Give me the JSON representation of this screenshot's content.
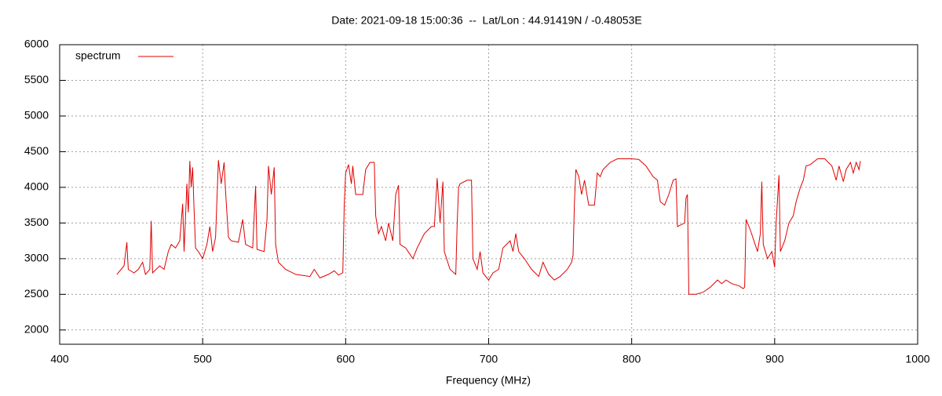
{
  "chart_data": {
    "type": "line",
    "title": "Date: 2021-09-18 15:00:36  --  Lat/Lon : 44.91419N / -0.48053E",
    "xlabel": "Frequency (MHz)",
    "xlim": [
      400,
      1000
    ],
    "xticks": [
      400,
      500,
      600,
      700,
      800,
      900,
      1000
    ],
    "ylim": [
      1800,
      6000
    ],
    "yticks": [
      2000,
      2500,
      3000,
      3500,
      4000,
      4500,
      5000,
      5500,
      6000
    ],
    "grid": true,
    "legend": "top-left",
    "x": [
      440,
      443,
      445,
      447,
      448,
      452,
      455,
      458,
      460,
      463,
      464,
      465,
      470,
      473,
      476,
      478,
      481,
      484,
      486,
      487,
      489,
      490,
      491,
      492,
      493,
      494,
      495,
      497,
      500,
      503,
      505,
      507,
      509,
      511,
      513,
      515,
      516,
      518,
      520,
      525,
      528,
      530,
      535,
      537,
      538,
      543,
      545,
      546,
      548,
      550,
      551,
      553,
      558,
      565,
      575,
      578,
      582,
      588,
      592,
      595,
      598,
      599,
      600,
      602,
      604,
      605,
      607,
      612,
      614,
      617,
      620,
      621,
      623,
      625,
      628,
      630,
      633,
      635,
      637,
      638,
      642,
      647,
      650,
      655,
      660,
      662,
      664,
      666,
      668,
      669,
      673,
      677,
      678,
      679,
      680,
      685,
      688,
      689,
      692,
      694,
      696,
      700,
      703,
      707,
      710,
      715,
      717,
      719,
      721,
      725,
      730,
      735,
      738,
      742,
      746,
      750,
      755,
      758,
      759,
      760,
      761,
      763,
      765,
      767,
      770,
      774,
      776,
      778,
      780,
      785,
      790,
      800,
      805,
      810,
      815,
      818,
      820,
      823,
      826,
      829,
      831,
      832,
      835,
      837,
      838,
      839,
      840,
      845,
      850,
      855,
      860,
      863,
      866,
      870,
      875,
      878,
      879,
      880,
      883,
      888,
      890,
      891,
      892,
      895,
      898,
      900,
      901,
      903,
      904,
      907,
      910,
      913,
      915,
      918,
      920,
      922,
      925,
      930,
      935,
      940,
      943,
      945,
      948,
      950,
      953,
      955,
      957,
      959,
      960
    ],
    "series": [
      {
        "name": "spectrum",
        "color": "#e00000",
        "values": [
          2780,
          2850,
          2900,
          3230,
          2850,
          2800,
          2850,
          2950,
          2780,
          2850,
          3530,
          2800,
          2900,
          2850,
          3100,
          3200,
          3150,
          3250,
          3770,
          3100,
          4050,
          3650,
          4370,
          4000,
          4280,
          3700,
          3150,
          3100,
          3000,
          3200,
          3450,
          3100,
          3300,
          4380,
          4050,
          4350,
          3950,
          3300,
          3250,
          3230,
          3550,
          3200,
          3150,
          4020,
          3130,
          3100,
          3550,
          4300,
          3900,
          4280,
          3200,
          2950,
          2850,
          2780,
          2750,
          2850,
          2730,
          2780,
          2830,
          2770,
          2800,
          3750,
          4200,
          4320,
          4050,
          4300,
          3900,
          3900,
          4250,
          4350,
          4350,
          3600,
          3350,
          3450,
          3250,
          3500,
          3250,
          3900,
          4030,
          3200,
          3150,
          3000,
          3150,
          3350,
          3450,
          3450,
          4130,
          3500,
          4080,
          3100,
          2850,
          2780,
          3500,
          4000,
          4050,
          4100,
          4100,
          3000,
          2850,
          3100,
          2800,
          2700,
          2800,
          2850,
          3150,
          3250,
          3100,
          3350,
          3100,
          3000,
          2850,
          2750,
          2950,
          2780,
          2700,
          2750,
          2850,
          2950,
          3050,
          3800,
          4250,
          4150,
          3900,
          4100,
          3750,
          3750,
          4200,
          4150,
          4250,
          4350,
          4400,
          4400,
          4390,
          4300,
          4150,
          4100,
          3800,
          3750,
          3900,
          4100,
          4120,
          3450,
          3480,
          3500,
          3850,
          3900,
          2500,
          2500,
          2530,
          2600,
          2700,
          2650,
          2700,
          2650,
          2620,
          2580,
          2600,
          3550,
          3400,
          3100,
          3350,
          4080,
          3200,
          3000,
          3100,
          2880,
          3500,
          4170,
          3100,
          3250,
          3500,
          3600,
          3800,
          4000,
          4100,
          4300,
          4320,
          4400,
          4400,
          4300,
          4100,
          4300,
          4080,
          4250,
          4350,
          4200,
          4350,
          4250,
          4370
        ]
      }
    ]
  }
}
